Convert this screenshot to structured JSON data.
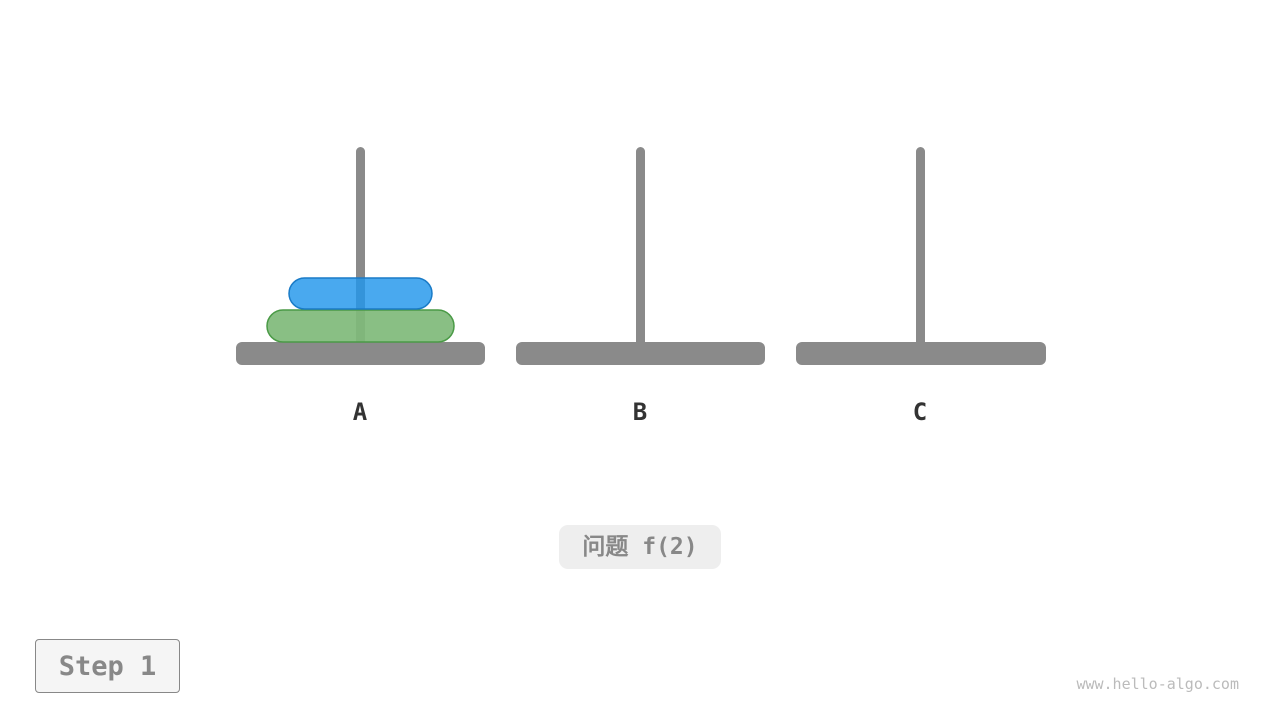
{
  "rods": [
    {
      "label": "A"
    },
    {
      "label": "B"
    },
    {
      "label": "C"
    }
  ],
  "disks": [
    {
      "rod": "A",
      "size": 2,
      "color": "#7fba7a",
      "stroke": "#4a9a46"
    },
    {
      "rod": "A",
      "size": 1,
      "color": "#2196ec",
      "stroke": "#1a7bc7"
    }
  ],
  "problem_label": "问题 f(2)",
  "step_label": "Step 1",
  "watermark": "www.hello-algo.com",
  "colors": {
    "rod": "#8a8a8a"
  }
}
